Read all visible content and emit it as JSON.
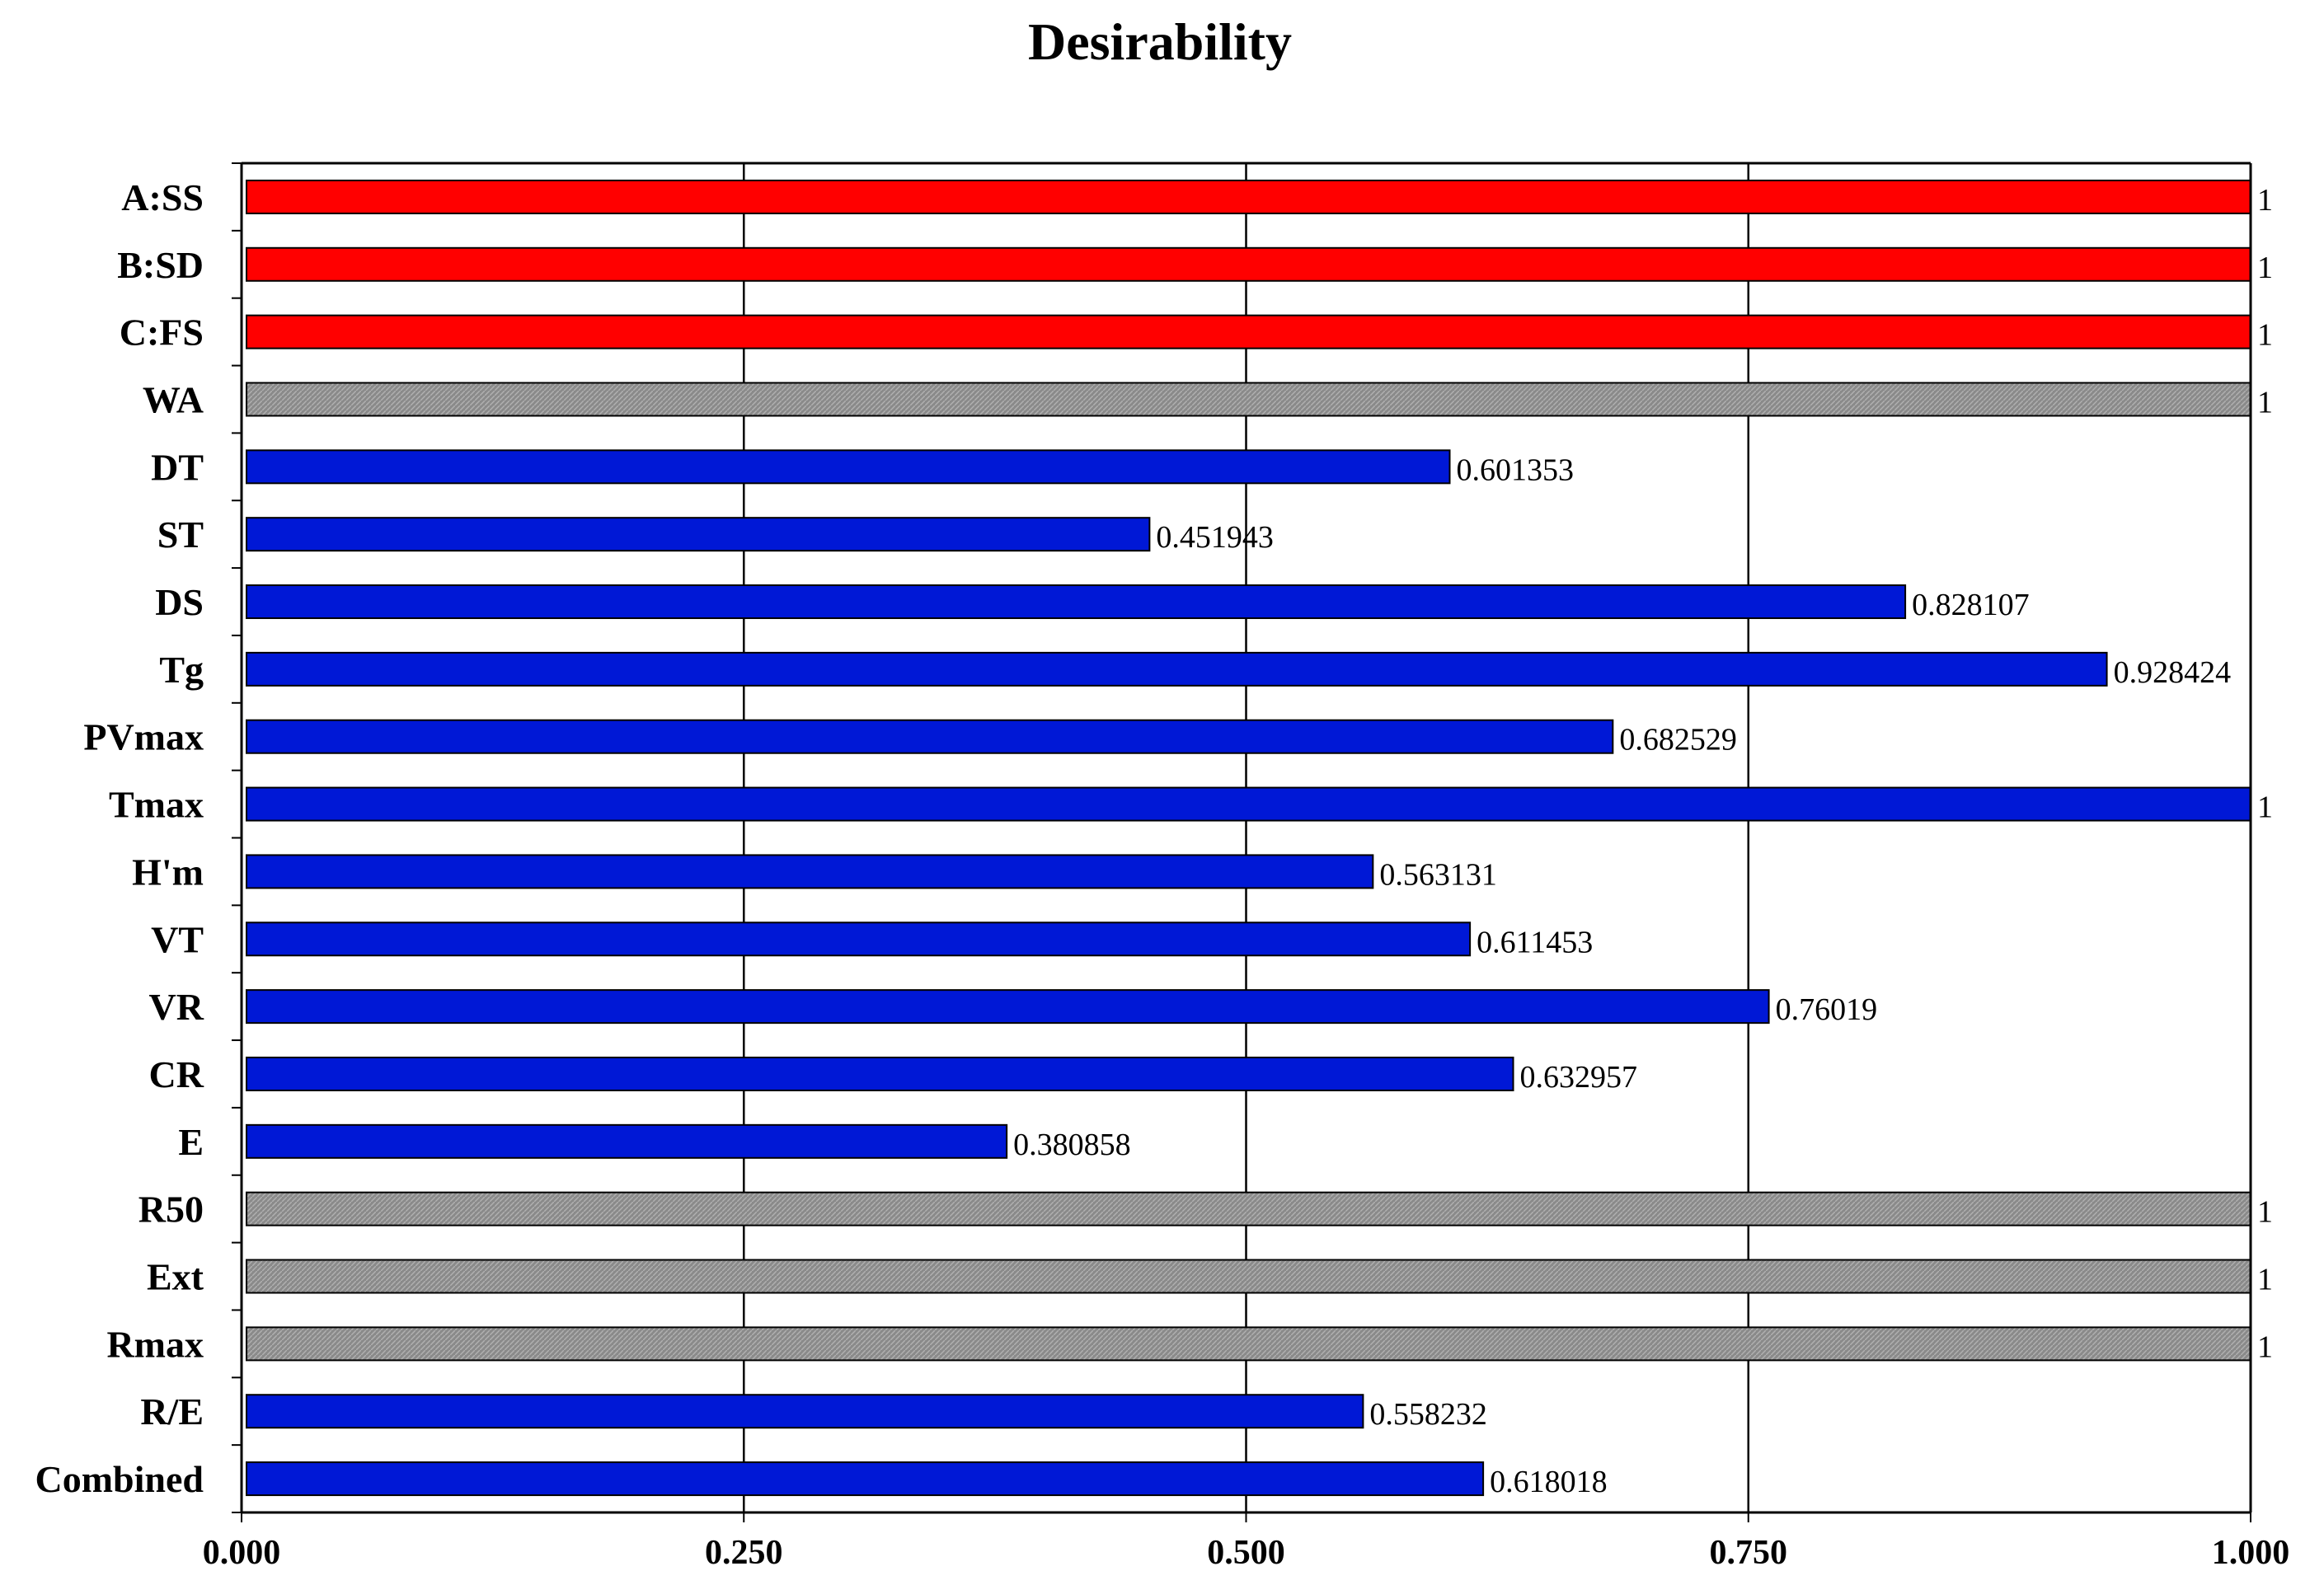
{
  "chart_data": {
    "type": "bar",
    "orientation": "horizontal",
    "title": "Desirability",
    "xlabel": "",
    "ylabel": "",
    "xlim": [
      0,
      1
    ],
    "x_ticks": [
      0,
      0.25,
      0.5,
      0.75,
      1
    ],
    "x_tick_labels": [
      "0.000",
      "0.250",
      "0.500",
      "0.750",
      "1.000"
    ],
    "grid": true,
    "legend": null,
    "colors": {
      "factor": "#ff0000",
      "response": "#0018d6",
      "excluded": "#8a8a8a",
      "grid": "#000000",
      "text": "#000000"
    },
    "bars": [
      {
        "label": "A:SS",
        "value": 1,
        "value_label": "1",
        "group": "factor"
      },
      {
        "label": "B:SD",
        "value": 1,
        "value_label": "1",
        "group": "factor"
      },
      {
        "label": "C:FS",
        "value": 1,
        "value_label": "1",
        "group": "factor"
      },
      {
        "label": "WA",
        "value": 1,
        "value_label": "1",
        "group": "excluded"
      },
      {
        "label": "DT",
        "value": 0.601353,
        "value_label": "0.601353",
        "group": "response"
      },
      {
        "label": "ST",
        "value": 0.451943,
        "value_label": "0.451943",
        "group": "response"
      },
      {
        "label": "DS",
        "value": 0.828107,
        "value_label": "0.828107",
        "group": "response"
      },
      {
        "label": "Tg",
        "value": 0.928424,
        "value_label": "0.928424",
        "group": "response"
      },
      {
        "label": "PVmax",
        "value": 0.682529,
        "value_label": "0.682529",
        "group": "response"
      },
      {
        "label": "Tmax",
        "value": 1,
        "value_label": "1",
        "group": "response"
      },
      {
        "label": "H'm",
        "value": 0.563131,
        "value_label": "0.563131",
        "group": "response"
      },
      {
        "label": "VT",
        "value": 0.611453,
        "value_label": "0.611453",
        "group": "response"
      },
      {
        "label": "VR",
        "value": 0.76019,
        "value_label": "0.76019",
        "group": "response"
      },
      {
        "label": "CR",
        "value": 0.632957,
        "value_label": "0.632957",
        "group": "response"
      },
      {
        "label": "E",
        "value": 0.380858,
        "value_label": "0.380858",
        "group": "response"
      },
      {
        "label": "R50",
        "value": 1,
        "value_label": "1",
        "group": "excluded"
      },
      {
        "label": "Ext",
        "value": 1,
        "value_label": "1",
        "group": "excluded"
      },
      {
        "label": "Rmax",
        "value": 1,
        "value_label": "1",
        "group": "excluded"
      },
      {
        "label": "R/E",
        "value": 0.558232,
        "value_label": "0.558232",
        "group": "response"
      },
      {
        "label": "Combined",
        "value": 0.618018,
        "value_label": "0.618018",
        "group": "response"
      }
    ]
  }
}
